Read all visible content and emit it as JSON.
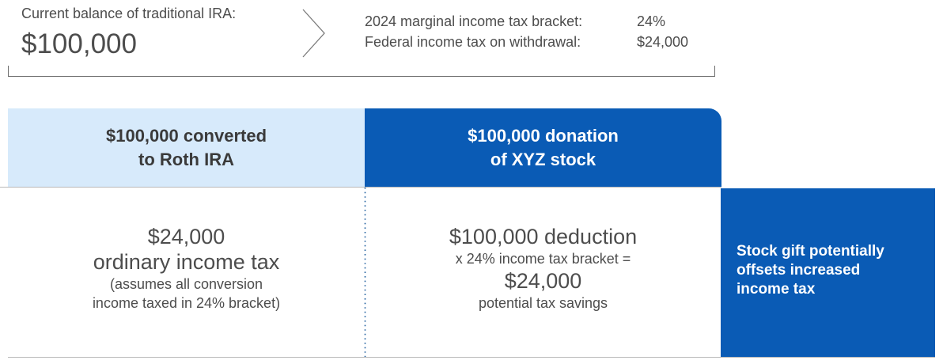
{
  "top": {
    "balance_label": "Current balance of traditional IRA:",
    "balance_value": "$100,000",
    "tax_rows": [
      {
        "label": "2024 marginal income tax bracket:",
        "value": "24%"
      },
      {
        "label": "Federal income tax on withdrawal:",
        "value": "$24,000"
      }
    ]
  },
  "options": [
    {
      "header_line1": "$100,000 converted",
      "header_line2": "to Roth IRA",
      "main_line1": "$24,000",
      "main_line2": "ordinary income tax",
      "note_line1": "(assumes all conversion",
      "note_line2": "income taxed in 24% bracket)"
    },
    {
      "header_line1": "$100,000 donation",
      "header_line2": "of XYZ stock",
      "main_line1": "$100,000 deduction",
      "calc_line": "x 24% income tax bracket =",
      "result_value": "$24,000",
      "result_note": "potential tax savings"
    }
  ],
  "conclusion": {
    "line1": "Stock gift potentially",
    "line2": "offsets increased",
    "line3": "income tax"
  },
  "colors": {
    "light_blue": "#d7eafb",
    "dark_blue": "#0a5bb5",
    "text_gray": "#4d4d4d",
    "line_gray": "#6d6d6d",
    "dotted_line": "#1f5f9e"
  }
}
